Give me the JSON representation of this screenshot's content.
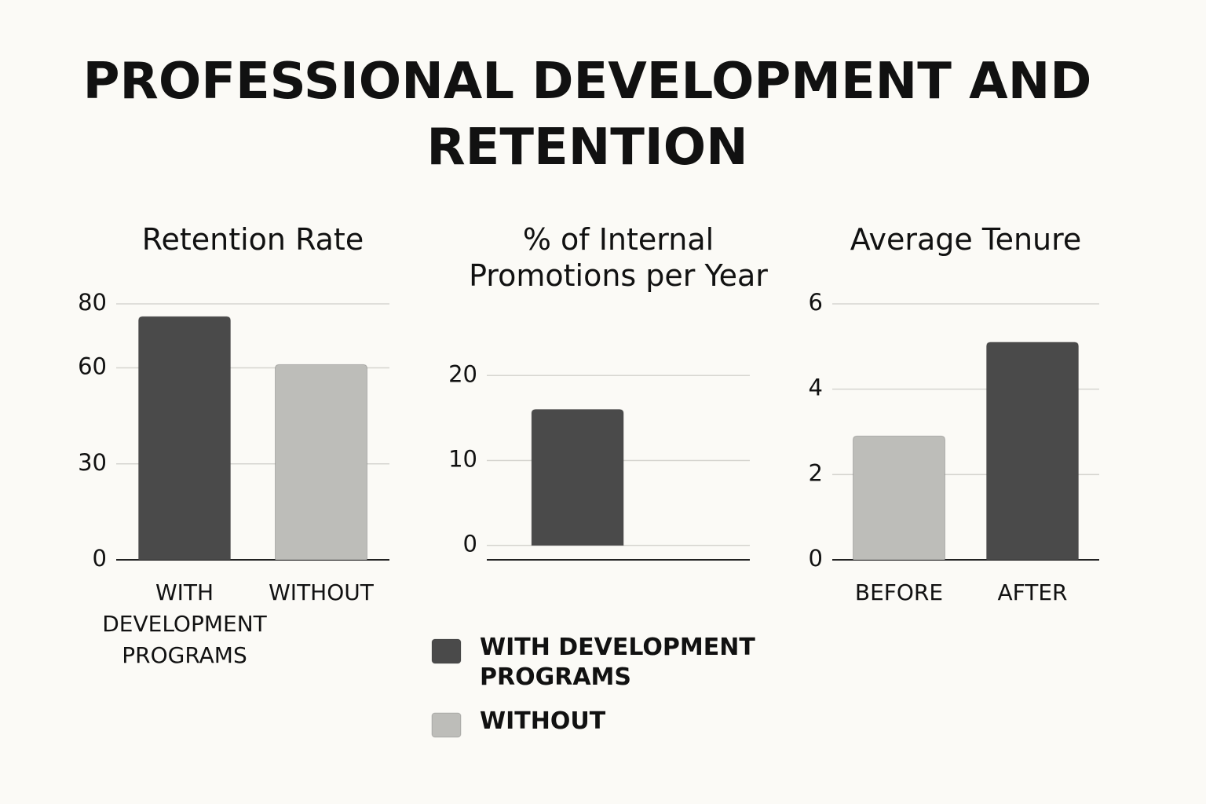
{
  "title": "PROFESSIONAL DEVELOPMENT AND RETENTION",
  "chart_data": [
    {
      "type": "bar",
      "title": "Retention Rate",
      "categories": [
        "WITH DEVELOPMENT PROGRAMS",
        "WITHOUT"
      ],
      "values": [
        76,
        61
      ],
      "colors": [
        "#4a4a4a",
        "#bdbdb9"
      ],
      "ylim": [
        0,
        80
      ],
      "yticks": [
        0,
        30,
        60,
        80
      ],
      "grid": true
    },
    {
      "type": "bar",
      "title": "% of Internal Promotions per Year",
      "categories": [
        null
      ],
      "series": [
        {
          "name": "WITH DEVELOPMENT PROGRAMS",
          "color": "#4a4a4a",
          "values": [
            16
          ]
        },
        {
          "name": "WITHOUT",
          "color": "#bdbdb9",
          "values": [
            null
          ]
        }
      ],
      "ylim": [
        -1.7,
        24
      ],
      "yticks": [
        0,
        10,
        20
      ],
      "grid": true
    },
    {
      "type": "bar",
      "title": "Average Tenure",
      "categories": [
        "BEFORE",
        "AFTER"
      ],
      "values": [
        2.9,
        5.1
      ],
      "colors": [
        "#bdbdb9",
        "#4a4a4a"
      ],
      "ylim": [
        0,
        6
      ],
      "yticks": [
        0,
        2,
        4,
        6
      ],
      "grid": true
    }
  ]
}
